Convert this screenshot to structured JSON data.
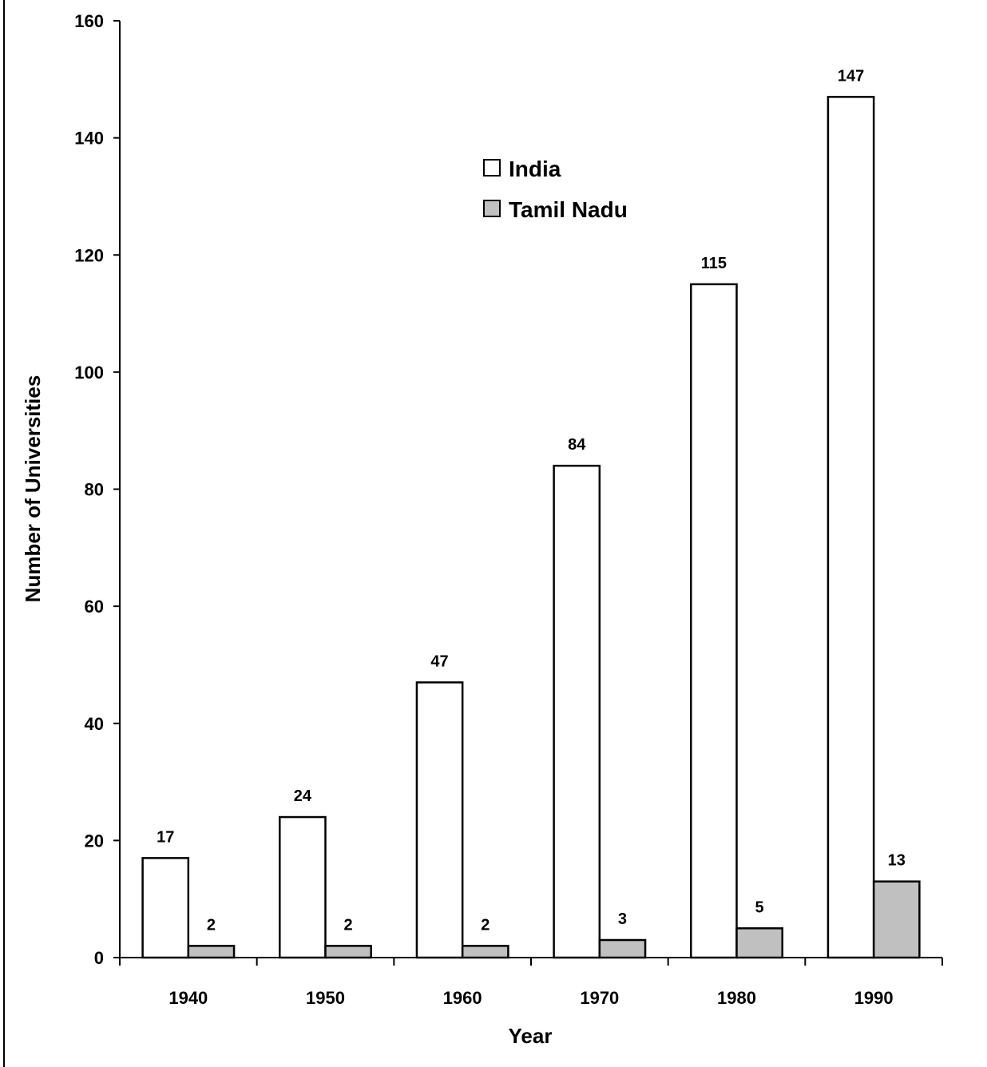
{
  "chart_data": {
    "type": "bar",
    "xlabel": "Year",
    "ylabel": "Number of Universities",
    "categories": [
      "1940",
      "1950",
      "1960",
      "1970",
      "1980",
      "1990"
    ],
    "series": [
      {
        "name": "India",
        "values": [
          17,
          24,
          47,
          84,
          115,
          147
        ],
        "color": "#ffffff"
      },
      {
        "name": "Tamil Nadu",
        "values": [
          2,
          2,
          2,
          3,
          5,
          13
        ],
        "color": "#c0c0c0"
      }
    ],
    "ylim": [
      0,
      160
    ],
    "yticks": [
      "0",
      "20",
      "40",
      "60",
      "80",
      "100",
      "120",
      "140",
      "160"
    ],
    "grid": false,
    "legend_position": "upper-center"
  }
}
